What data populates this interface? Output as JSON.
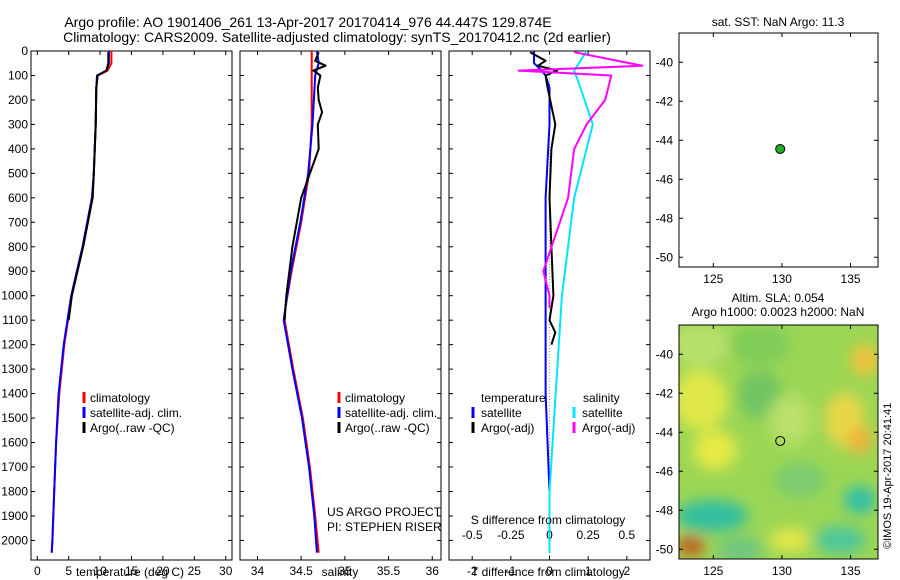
{
  "figure": {
    "title_line1": "Argo profile: AO 1901406_261 13-Apr-2017 20170414_976 44.447S 129.874E",
    "title_line2": "Climatology: CARS2009. Satellite-adjusted climatology: synTS_20170412.nc (2d earlier)",
    "credit_line1": "US ARGO PROJECT",
    "credit_line2": "PI: STEPHEN RISER",
    "imos_stamp": "©IMOS 19-Apr-2017 20:41:41"
  },
  "colors": {
    "climatology": "#ff0000",
    "satellite": "#0000ff",
    "argo": "#000000",
    "salinity_satellite": "#00e5ff",
    "salinity_argo": "#ff00ff",
    "marker": "#22b022"
  },
  "legend_profiles": {
    "climatology": "climatology",
    "satellite": "satellite-adj. clim.",
    "argo": "Argo(..raw -QC)"
  },
  "legend_diff": {
    "temp_header": "temperature",
    "sal_header": "salinity",
    "temp_sat": "satellite",
    "temp_argo": "Argo(-adj)",
    "sal_sat": "satellite",
    "sal_argo": "Argo(-adj)"
  },
  "chart_data": [
    {
      "type": "line",
      "xlabel": "temperature (deg C)",
      "xlim": [
        -1,
        31
      ],
      "ylim": [
        0,
        2080
      ],
      "y_reversed": true,
      "xticks": [
        "0",
        "5",
        "10",
        "15",
        "20",
        "25",
        "30"
      ],
      "yticks": [
        "0",
        "100",
        "200",
        "300",
        "400",
        "500",
        "600",
        "700",
        "800",
        "900",
        "1000",
        "1100",
        "1200",
        "1300",
        "1400",
        "1500",
        "1600",
        "1700",
        "1800",
        "1900",
        "2000"
      ],
      "series": [
        {
          "name": "climatology",
          "color": "#ff0000",
          "depth": [
            0,
            50,
            80,
            100,
            150,
            300,
            500,
            600,
            800,
            1000,
            1200,
            1400,
            1600,
            1800,
            2000,
            2050
          ],
          "values": [
            11.8,
            11.8,
            11.2,
            9.6,
            9.4,
            9.3,
            9.0,
            8.8,
            7.3,
            5.5,
            4.3,
            3.5,
            3.0,
            2.7,
            2.4,
            2.3
          ]
        },
        {
          "name": "satellite-adj. clim.",
          "color": "#0000ff",
          "depth": [
            0,
            50,
            80,
            100,
            150,
            300,
            500,
            600,
            800,
            1000,
            1200,
            1400,
            1600,
            1800,
            2000,
            2050
          ],
          "values": [
            11.4,
            11.4,
            11.0,
            9.5,
            9.4,
            9.3,
            9.0,
            8.7,
            7.2,
            5.4,
            4.2,
            3.4,
            3.0,
            2.7,
            2.4,
            2.3
          ]
        },
        {
          "name": "Argo(..raw -QC)",
          "color": "#000000",
          "depth": [
            5,
            50,
            80,
            100,
            150,
            300,
            500,
            600,
            800,
            1000,
            1100
          ],
          "values": [
            11.3,
            11.3,
            11.0,
            9.6,
            9.4,
            9.3,
            9.0,
            8.8,
            7.3,
            5.5,
            5.0
          ]
        }
      ]
    },
    {
      "type": "line",
      "xlabel": "salinity",
      "xlim": [
        33.8,
        36.1
      ],
      "ylim": [
        0,
        2080
      ],
      "y_reversed": true,
      "xticks": [
        "34",
        "34.5",
        "35",
        "35.5",
        "36"
      ],
      "series": [
        {
          "name": "climatology",
          "color": "#ff0000",
          "depth": [
            0,
            100,
            300,
            500,
            700,
            900,
            1050,
            1100,
            1300,
            1500,
            1700,
            1900,
            2050
          ],
          "values": [
            34.62,
            34.62,
            34.62,
            34.59,
            34.5,
            34.39,
            34.32,
            34.31,
            34.41,
            34.52,
            34.6,
            34.66,
            34.7
          ]
        },
        {
          "name": "satellite-adj. clim.",
          "color": "#0000ff",
          "depth": [
            0,
            50,
            100,
            300,
            500,
            700,
            900,
            1050,
            1100,
            1300,
            1500,
            1700,
            1900,
            2050
          ],
          "values": [
            34.68,
            34.7,
            34.66,
            34.63,
            34.58,
            34.49,
            34.38,
            34.32,
            34.3,
            34.4,
            34.51,
            34.59,
            34.65,
            34.68
          ]
        },
        {
          "name": "Argo(..raw -QC)",
          "color": "#000000",
          "depth": [
            5,
            40,
            60,
            80,
            100,
            150,
            200,
            250,
            300,
            400,
            500,
            600,
            800,
            1000,
            1100
          ],
          "values": [
            34.7,
            34.66,
            34.78,
            34.64,
            34.72,
            34.69,
            34.7,
            34.74,
            34.69,
            34.7,
            34.6,
            34.5,
            34.4,
            34.33,
            34.31
          ]
        }
      ]
    },
    {
      "type": "line",
      "xlabel": "T difference from climatology",
      "xlabel_top": "S difference from climatology",
      "xlim": [
        -2.6,
        2.6
      ],
      "ylim": [
        0,
        2080
      ],
      "y_reversed": true,
      "xticks": [
        "-2",
        "-1",
        "0",
        "1",
        "2"
      ],
      "xticks_top": [
        "-0.5",
        "-0.25",
        "0",
        "0.25",
        "0.5"
      ],
      "series": [
        {
          "name": "temperature satellite",
          "color": "#0000ff",
          "depth": [
            0,
            50,
            80,
            100,
            150,
            300,
            600,
            1000,
            1400,
            1800,
            2050
          ],
          "values": [
            -0.4,
            -0.4,
            -0.2,
            -0.1,
            0,
            0,
            -0.1,
            -0.1,
            -0.1,
            0,
            0
          ]
        },
        {
          "name": "temperature Argo(-adj)",
          "color": "#000000",
          "depth": [
            5,
            40,
            60,
            80,
            100,
            150,
            300,
            400,
            600,
            800,
            1000,
            1100,
            1150,
            1200
          ],
          "values": [
            -0.5,
            -0.1,
            -0.3,
            0.2,
            -0.1,
            -0.05,
            0.15,
            0.05,
            0,
            0.05,
            0.1,
            0,
            0.15,
            0.05
          ]
        },
        {
          "name": "salinity satellite",
          "color": "#00e5ff",
          "depth": [
            0,
            80,
            150,
            300,
            600,
            1000,
            1400,
            1800,
            2050
          ],
          "values": [
            0.24,
            0.16,
            0.2,
            0.28,
            0.16,
            0.08,
            0.04,
            0,
            0
          ]
        },
        {
          "name": "salinity Argo(-adj)",
          "color": "#ff00ff",
          "depth": [
            5,
            60,
            80,
            100,
            200,
            300,
            400,
            600,
            900,
            1000,
            1050
          ],
          "values": [
            0.16,
            0.6,
            -0.2,
            0.4,
            0.36,
            0.24,
            0.16,
            0.12,
            -0.04,
            0,
            0
          ]
        }
      ]
    },
    {
      "type": "scatter",
      "title": "sat. SST: NaN Argo: 11.3",
      "xlim": [
        122.5,
        137
      ],
      "ylim": [
        -50.5,
        -38.5
      ],
      "xticks": [
        "125",
        "130",
        "135"
      ],
      "yticks": [
        "-40",
        "-42",
        "-44",
        "-46",
        "-48",
        "-50"
      ],
      "points": [
        {
          "x": 129.874,
          "y": -44.447
        }
      ]
    },
    {
      "type": "heatmap",
      "title_line1": "Altim. SLA: 0.054",
      "title_line2": "Argo h1000: 0.0023 h2000: NaN",
      "xlim": [
        122.5,
        137
      ],
      "ylim": [
        -50.5,
        -38.5
      ],
      "xticks": [
        "125",
        "130",
        "135"
      ],
      "yticks": [
        "-40",
        "-42",
        "-44",
        "-46",
        "-48",
        "-50"
      ],
      "points": [
        {
          "x": 129.874,
          "y": -44.447
        }
      ]
    }
  ]
}
